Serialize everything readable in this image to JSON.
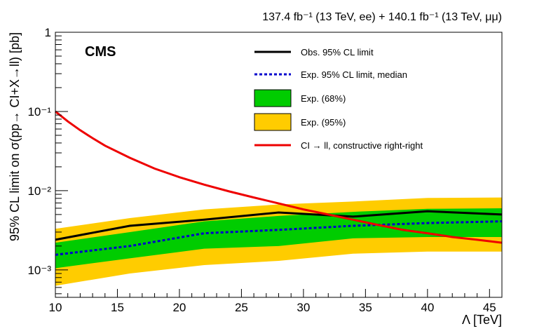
{
  "header": {
    "lumi_text": "137.4 fb⁻¹ (13 TeV, ee) + 140.1 fb⁻¹ (13 TeV, μμ)",
    "experiment": "CMS"
  },
  "chart_data": {
    "type": "line",
    "xlabel": "Λ [TeV]",
    "ylabel": "95% CL limit on σ(pp→ CI+X→ll) [pb]",
    "xlim": [
      10,
      46
    ],
    "ylim": [
      0.00045,
      1
    ],
    "yscale": "log",
    "x_ticks": [
      10,
      15,
      20,
      25,
      30,
      35,
      40,
      45
    ],
    "x_tick_labels": [
      "10",
      "15",
      "20",
      "25",
      "30",
      "35",
      "40",
      "45"
    ],
    "y_ticks": [
      0.001,
      0.01,
      0.1,
      1
    ],
    "y_tick_labels": [
      "10⁻³",
      "10⁻²",
      "10⁻¹",
      "1"
    ],
    "grid": false,
    "legend_position": "top-right",
    "band95": {
      "name": "Exp. (95%)",
      "color": "#FFCC00",
      "x": [
        10,
        16,
        22,
        28,
        34,
        40,
        46
      ],
      "lower": [
        0.00063,
        0.0009,
        0.00115,
        0.0013,
        0.0016,
        0.0017,
        0.0017
      ],
      "upper": [
        0.0033,
        0.0045,
        0.0058,
        0.0067,
        0.0073,
        0.0081,
        0.0082
      ]
    },
    "band68": {
      "name": "Exp. (68%)",
      "color": "#00CC00",
      "x": [
        10,
        16,
        22,
        28,
        34,
        40,
        46
      ],
      "lower": [
        0.00105,
        0.0014,
        0.00185,
        0.002,
        0.0025,
        0.0026,
        0.0026
      ],
      "upper": [
        0.0022,
        0.003,
        0.0041,
        0.0048,
        0.0054,
        0.0059,
        0.006
      ]
    },
    "series": [
      {
        "name": "Obs. 95% CL limit",
        "color": "#000000",
        "style": "solid",
        "x": [
          10,
          16,
          22,
          28,
          34,
          40,
          46
        ],
        "y": [
          0.0024,
          0.0036,
          0.0043,
          0.0053,
          0.0047,
          0.0055,
          0.005
        ]
      },
      {
        "name": "Exp. 95% CL limit, median",
        "color": "#0000CC",
        "style": "dashed",
        "x": [
          10,
          16,
          22,
          28,
          34,
          40,
          46
        ],
        "y": [
          0.00155,
          0.002,
          0.0029,
          0.0032,
          0.0036,
          0.0039,
          0.0041
        ]
      },
      {
        "name": "CI → ll, constructive right-right",
        "color": "#EE0000",
        "style": "solid",
        "x": [
          10,
          11,
          12,
          13,
          14,
          16,
          18,
          20,
          22,
          24,
          26,
          28,
          30,
          32,
          34,
          36,
          38,
          40,
          42,
          44,
          46
        ],
        "y": [
          0.1,
          0.075,
          0.058,
          0.046,
          0.037,
          0.026,
          0.019,
          0.0148,
          0.0119,
          0.0098,
          0.0082,
          0.0069,
          0.0058,
          0.005,
          0.0043,
          0.0037,
          0.0032,
          0.0029,
          0.0026,
          0.0024,
          0.0022
        ]
      }
    ]
  }
}
